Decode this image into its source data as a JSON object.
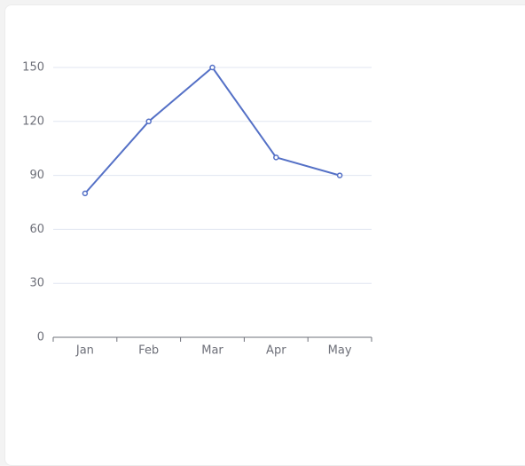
{
  "chart_data": {
    "type": "line",
    "categories": [
      "Jan",
      "Feb",
      "Mar",
      "Apr",
      "May"
    ],
    "series": [
      {
        "color": "#5470c6",
        "values": [
          80,
          120,
          150,
          100,
          90
        ]
      }
    ],
    "ylim": [
      0,
      150
    ],
    "yticks": [
      0,
      30,
      60,
      90,
      120,
      150
    ],
    "grid": true
  }
}
